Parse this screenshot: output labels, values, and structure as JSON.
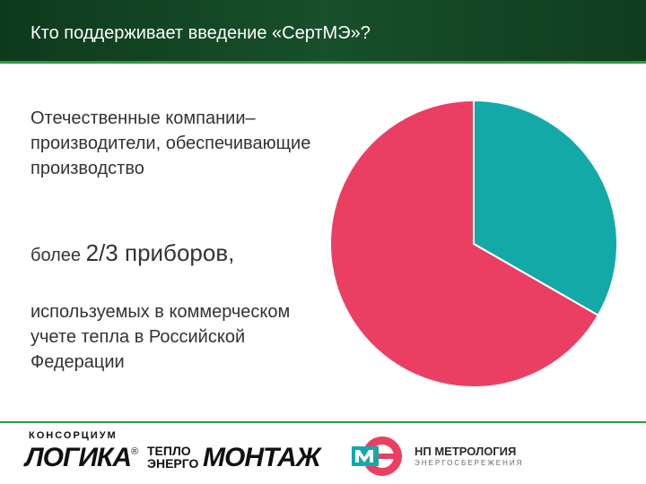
{
  "header": {
    "title": "Кто поддерживает введение «СертМЭ»?"
  },
  "body": {
    "lead": "Отечественные компании–производители, обеспечивающие производство",
    "emph_small": "более ",
    "emph_big": "2/3 приборов,",
    "tail": "используемых в коммерческом учете тепла в Российской Федерации"
  },
  "chart_data": {
    "type": "pie",
    "slices": [
      {
        "value": 66.7,
        "color": "#ea3f63"
      },
      {
        "value": 33.3,
        "color": "#14a9a9"
      }
    ],
    "start_angle_deg": 0,
    "legend": false
  },
  "footer": {
    "logo_left": {
      "consortium": "КОНСОРЦИУМ",
      "logika": "ЛОГИКА",
      "reg": "®",
      "teplo1": "ТЕПЛО",
      "teplo2": "ЭНЕРГО",
      "montazh": "МОНТАЖ"
    },
    "logo_right": {
      "name": "НП МЕТРОЛОГИЯ",
      "sub": "ЭНЕРГОСБЕРЕЖЕНИЯ"
    }
  },
  "colors": {
    "header_bg": "#17502a",
    "accent_line": "#2f9a42",
    "pink": "#ea3f63",
    "teal": "#14a9a9"
  }
}
